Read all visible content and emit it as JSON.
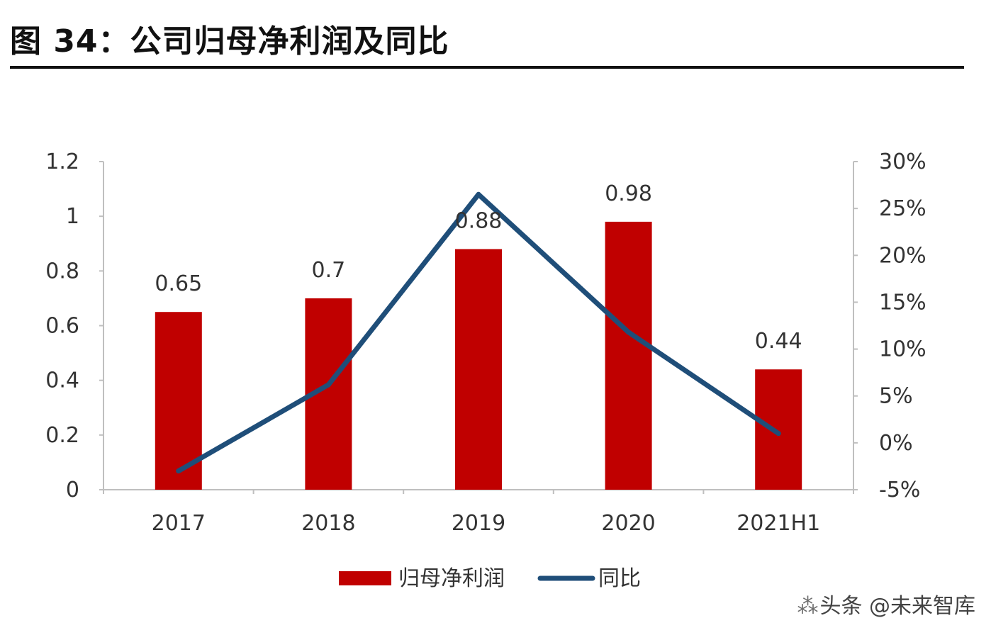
{
  "header": {
    "title": "图 34：公司归母净利润及同比"
  },
  "watermark": {
    "text": "头条 @未来智库"
  },
  "colors": {
    "bar": "#c00000",
    "line": "#1f4e79",
    "axis": "#bfbfbf",
    "text": "#333333"
  },
  "chart_data": {
    "type": "bar",
    "categories": [
      "2017",
      "2018",
      "2019",
      "2020",
      "2021H1"
    ],
    "series": [
      {
        "name": "归母净利润",
        "type": "bar",
        "axis": "left",
        "values": [
          0.65,
          0.7,
          0.88,
          0.98,
          0.44
        ],
        "labels": [
          "0.65",
          "0.7",
          "0.88",
          "0.98",
          "0.44"
        ]
      },
      {
        "name": "同比",
        "type": "line",
        "axis": "right",
        "values": [
          -3.0,
          6.2,
          26.5,
          11.8,
          1.0
        ]
      }
    ],
    "y_left": {
      "ylim": [
        0,
        1.2
      ],
      "ticks": [
        0,
        0.2,
        0.4,
        0.6,
        0.8,
        1,
        1.2
      ],
      "tick_labels": [
        "0",
        "0.2",
        "0.4",
        "0.6",
        "0.8",
        "1",
        "1.2"
      ]
    },
    "y_right": {
      "ylim": [
        -5,
        30
      ],
      "ticks": [
        -5,
        0,
        5,
        10,
        15,
        20,
        25,
        30
      ],
      "tick_labels": [
        "-5%",
        "0%",
        "5%",
        "10%",
        "15%",
        "20%",
        "25%",
        "30%"
      ]
    },
    "grid": false,
    "legend": {
      "position": "bottom",
      "items": [
        "归母净利润",
        "同比"
      ]
    }
  }
}
